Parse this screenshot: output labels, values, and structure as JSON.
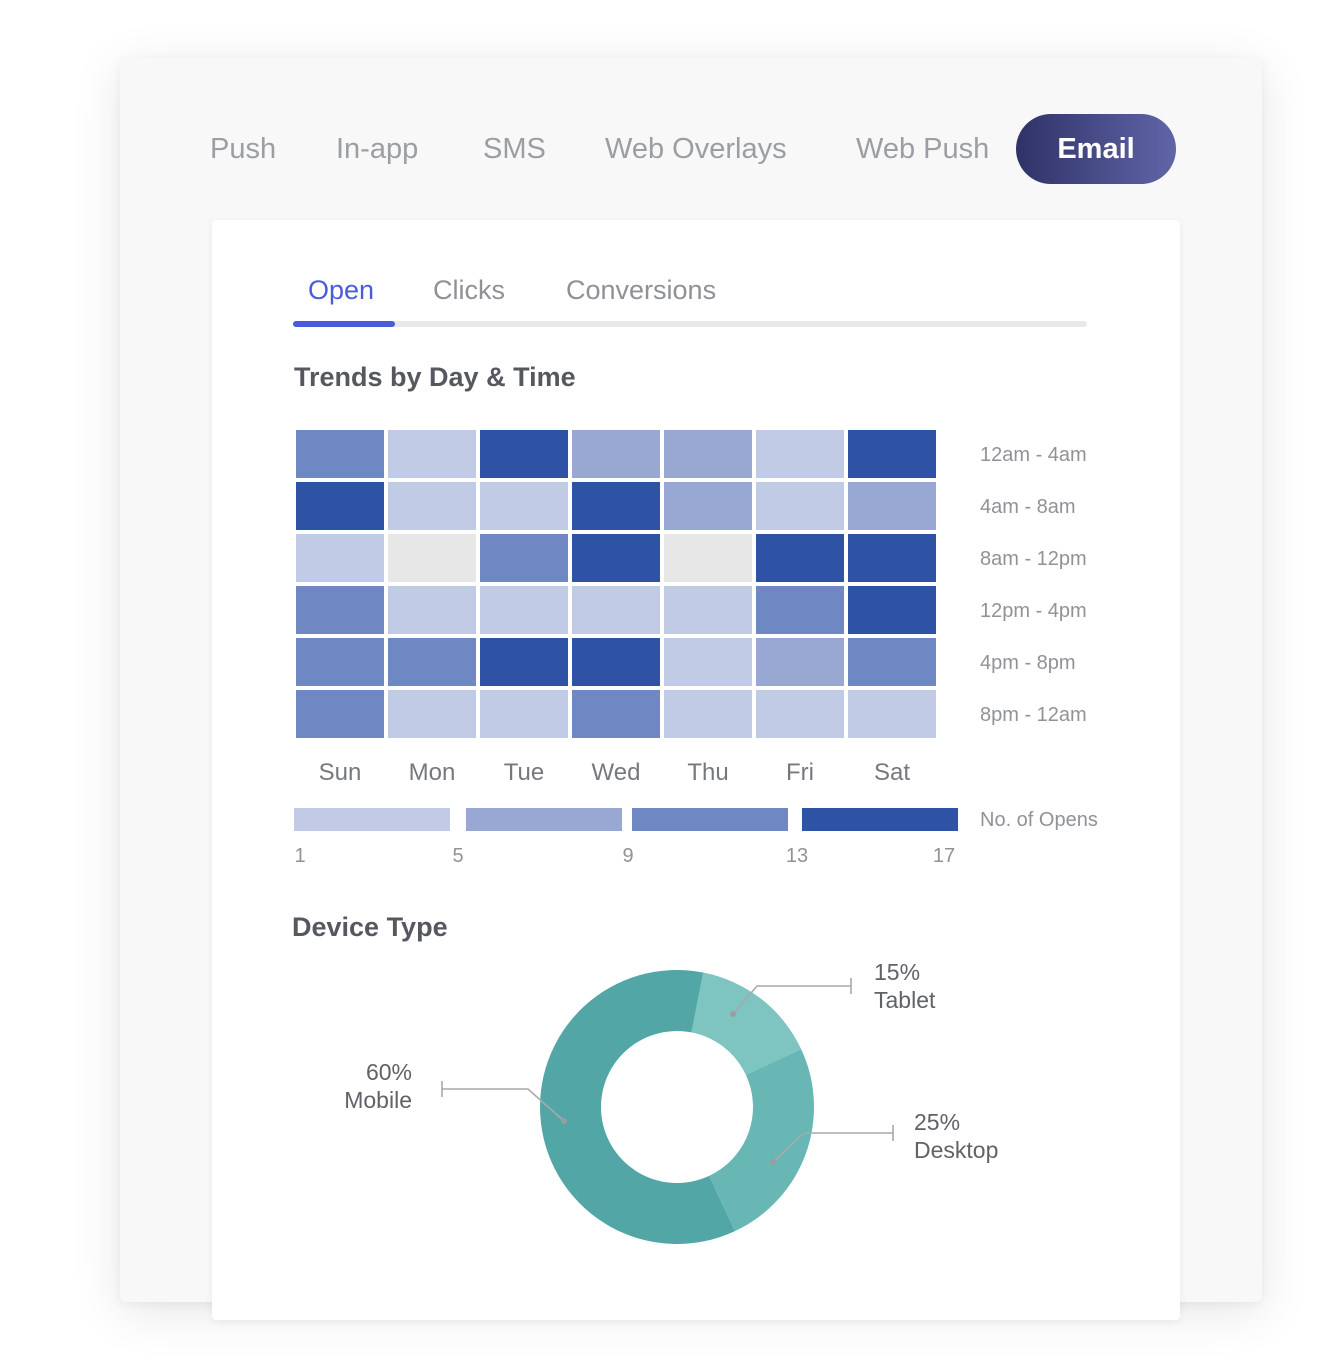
{
  "channel_tabs": {
    "items": [
      "Push",
      "In-app",
      "SMS",
      "Web Overlays",
      "Web Push",
      "Email"
    ],
    "active": "Email"
  },
  "metric_tabs": {
    "items": [
      "Open",
      "Clicks",
      "Conversions"
    ],
    "active": "Open"
  },
  "colors": {
    "level1": "#c2cbe5",
    "level2": "#98a8d3",
    "level3": "#6f87c2",
    "level4": "#2e53a5",
    "empty": "#e7e7e7",
    "mobile": "#52a6a6",
    "desktop": "#68b7b5",
    "tablet": "#7ec4c1",
    "active_tab": "#4a5bdc"
  },
  "chart_data": [
    {
      "type": "heatmap",
      "title": "Trends by Day & Time",
      "x": [
        "Sun",
        "Mon",
        "Tue",
        "Wed",
        "Thu",
        "Fri",
        "Sat"
      ],
      "y": [
        "12am - 4am",
        "4am - 8am",
        "8am - 12pm",
        "12pm - 4pm",
        "4pm - 8pm",
        "8pm - 12am"
      ],
      "levels": [
        [
          3,
          1,
          4,
          2,
          2,
          1,
          4
        ],
        [
          4,
          1,
          1,
          4,
          2,
          1,
          2
        ],
        [
          1,
          0,
          3,
          4,
          0,
          4,
          4
        ],
        [
          3,
          1,
          1,
          1,
          1,
          3,
          4
        ],
        [
          3,
          3,
          4,
          4,
          1,
          2,
          3
        ],
        [
          3,
          1,
          1,
          3,
          1,
          1,
          1
        ]
      ],
      "legend": {
        "title": "No. of Opens",
        "ticks": [
          "1",
          "5",
          "9",
          "13",
          "17"
        ]
      }
    },
    {
      "type": "pie",
      "title": "Device Type",
      "slices": [
        {
          "label": "Tablet",
          "value": 15,
          "value_label": "15%"
        },
        {
          "label": "Desktop",
          "value": 25,
          "value_label": "25%"
        },
        {
          "label": "Mobile",
          "value": 60,
          "value_label": "60%"
        }
      ]
    }
  ]
}
